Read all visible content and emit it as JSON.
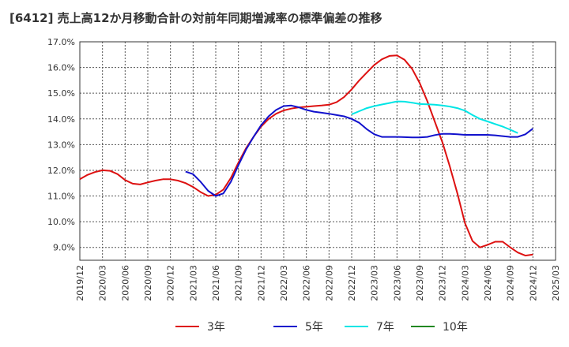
{
  "title": "[6412]  売上高12か月移動合計の対前年同期増減率の標準偏差の推移",
  "chart_data": {
    "type": "line",
    "title": "[6412]  売上高12か月移動合計の対前年同期増減率の標準偏差の推移",
    "xlabel": "",
    "ylabel": "",
    "x_ticks": [
      "2019/12",
      "2020/03",
      "2020/06",
      "2020/09",
      "2020/12",
      "2021/03",
      "2021/06",
      "2021/09",
      "2021/12",
      "2022/03",
      "2022/06",
      "2022/09",
      "2022/12",
      "2023/03",
      "2023/06",
      "2023/09",
      "2023/12",
      "2024/03",
      "2024/06",
      "2024/09",
      "2024/12",
      "2025/03"
    ],
    "y_ticks": [
      "9.0%",
      "10.0%",
      "11.0%",
      "12.0%",
      "13.0%",
      "14.0%",
      "15.0%",
      "16.0%",
      "17.0%"
    ],
    "ylim": [
      8.5,
      17.0
    ],
    "grid": true,
    "legend_position": "bottom",
    "series": [
      {
        "name": "3年",
        "color": "#dd1111",
        "start": "2019/12",
        "values": [
          11.65,
          11.82,
          11.93,
          12.0,
          11.98,
          11.85,
          11.62,
          11.48,
          11.45,
          11.53,
          11.6,
          11.65,
          11.65,
          11.6,
          11.5,
          11.35,
          11.15,
          11.0,
          11.05,
          11.25,
          11.7,
          12.3,
          12.85,
          13.3,
          13.7,
          14.0,
          14.2,
          14.33,
          14.4,
          14.45,
          14.47,
          14.5,
          14.52,
          14.55,
          14.65,
          14.85,
          15.15,
          15.5,
          15.8,
          16.1,
          16.32,
          16.45,
          16.47,
          16.3,
          15.95,
          15.4,
          14.7,
          13.9,
          13.1,
          12.15,
          11.1,
          9.95,
          9.25,
          9.0,
          9.1,
          9.22,
          9.22,
          9.0,
          8.8,
          8.68,
          8.72
        ]
      },
      {
        "name": "5年",
        "color": "#1111cc",
        "start": "2021/02",
        "values": [
          11.95,
          11.85,
          11.55,
          11.2,
          11.0,
          11.1,
          11.55,
          12.2,
          12.8,
          13.3,
          13.75,
          14.1,
          14.35,
          14.5,
          14.52,
          14.45,
          14.35,
          14.28,
          14.24,
          14.2,
          14.15,
          14.1,
          14.0,
          13.85,
          13.6,
          13.4,
          13.3,
          13.3,
          13.3,
          13.29,
          13.28,
          13.28,
          13.3,
          13.37,
          13.42,
          13.42,
          13.4,
          13.38,
          13.38,
          13.38,
          13.38,
          13.36,
          13.33,
          13.3,
          13.3,
          13.4,
          13.62
        ]
      },
      {
        "name": "7年",
        "color": "#00e5e5",
        "start": "2022/12",
        "values": [
          14.18,
          14.3,
          14.42,
          14.5,
          14.56,
          14.62,
          14.68,
          14.67,
          14.63,
          14.58,
          14.57,
          14.55,
          14.52,
          14.48,
          14.42,
          14.32,
          14.15,
          14.0,
          13.9,
          13.8,
          13.7,
          13.58,
          13.45
        ]
      },
      {
        "name": "10年",
        "color": "#228822",
        "start": "2024/12",
        "values": []
      }
    ]
  }
}
